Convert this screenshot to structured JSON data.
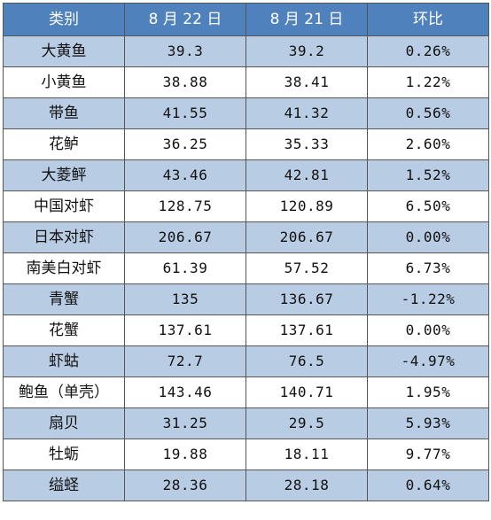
{
  "table": {
    "headers": [
      "类别",
      "8 月 22 日",
      "8 月 21 日",
      "环比"
    ],
    "rows": [
      [
        "大黄鱼",
        "39.3",
        "39.2",
        "0.26%"
      ],
      [
        "小黄鱼",
        "38.88",
        "38.41",
        "1.22%"
      ],
      [
        "带鱼",
        "41.55",
        "41.32",
        "0.56%"
      ],
      [
        "花鲈",
        "36.25",
        "35.33",
        "2.60%"
      ],
      [
        "大菱鲆",
        "43.46",
        "42.81",
        "1.52%"
      ],
      [
        "中国对虾",
        "128.75",
        "120.89",
        "6.50%"
      ],
      [
        "日本对虾",
        "206.67",
        "206.67",
        "0.00%"
      ],
      [
        "南美白对虾",
        "61.39",
        "57.52",
        "6.73%"
      ],
      [
        "青蟹",
        "135",
        "136.67",
        "-1.22%"
      ],
      [
        "花蟹",
        "137.61",
        "137.61",
        "0.00%"
      ],
      [
        "虾蛄",
        "72.7",
        "76.5",
        "-4.97%"
      ],
      [
        "鲍鱼（单壳）",
        "143.46",
        "140.71",
        "1.95%"
      ],
      [
        "扇贝",
        "31.25",
        "29.5",
        "5.93%"
      ],
      [
        "牡蛎",
        "19.88",
        "18.11",
        "9.77%"
      ],
      [
        "缢蛏",
        "28.36",
        "28.18",
        "0.64%"
      ]
    ]
  },
  "colors": {
    "header_bg": "#4f81bd",
    "header_text": "#ffffff",
    "shaded_row": "#b8cce4",
    "plain_row": "#ffffff",
    "border": "#555555"
  }
}
